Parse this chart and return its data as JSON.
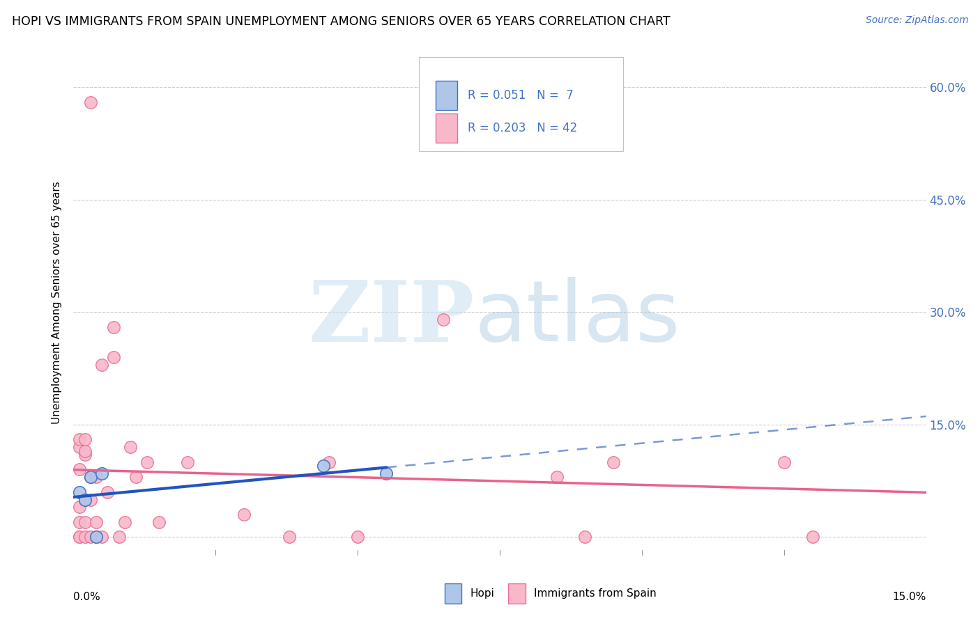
{
  "title": "HOPI VS IMMIGRANTS FROM SPAIN UNEMPLOYMENT AMONG SENIORS OVER 65 YEARS CORRELATION CHART",
  "source": "Source: ZipAtlas.com",
  "ylabel": "Unemployment Among Seniors over 65 years",
  "xmin": 0.0,
  "xmax": 0.15,
  "ymin": -0.025,
  "ymax": 0.65,
  "right_yticks": [
    0.15,
    0.3,
    0.45,
    0.6
  ],
  "right_yticklabels": [
    "15.0%",
    "30.0%",
    "45.0%",
    "60.0%"
  ],
  "hopi_color": "#aec6e8",
  "hopi_edge_color": "#4472c4",
  "spain_color": "#f9b8ca",
  "spain_edge_color": "#e87096",
  "hopi_line_color": "#2255bb",
  "spain_line_color": "#e8638a",
  "watermark_zip_color": "#c8dff0",
  "watermark_atlas_color": "#a8c8e0",
  "legend_box_color": "#e8e8f0",
  "hopi_x": [
    0.001,
    0.002,
    0.003,
    0.004,
    0.005,
    0.044,
    0.055
  ],
  "hopi_y": [
    0.06,
    0.05,
    0.08,
    0.0,
    0.085,
    0.095,
    0.085
  ],
  "spain_x": [
    0.001,
    0.001,
    0.001,
    0.001,
    0.001,
    0.001,
    0.001,
    0.002,
    0.002,
    0.002,
    0.002,
    0.002,
    0.002,
    0.003,
    0.003,
    0.003,
    0.003,
    0.004,
    0.004,
    0.004,
    0.005,
    0.005,
    0.006,
    0.007,
    0.007,
    0.008,
    0.009,
    0.01,
    0.011,
    0.013,
    0.015,
    0.02,
    0.03,
    0.038,
    0.045,
    0.05,
    0.065,
    0.085,
    0.09,
    0.095,
    0.125,
    0.13
  ],
  "spain_y": [
    0.0,
    0.0,
    0.02,
    0.04,
    0.09,
    0.12,
    0.13,
    0.0,
    0.02,
    0.05,
    0.11,
    0.115,
    0.13,
    0.0,
    0.05,
    0.08,
    0.58,
    0.0,
    0.02,
    0.08,
    0.0,
    0.23,
    0.06,
    0.24,
    0.28,
    0.0,
    0.02,
    0.12,
    0.08,
    0.1,
    0.02,
    0.1,
    0.03,
    0.0,
    0.1,
    0.0,
    0.29,
    0.08,
    0.0,
    0.1,
    0.1,
    0.0
  ]
}
